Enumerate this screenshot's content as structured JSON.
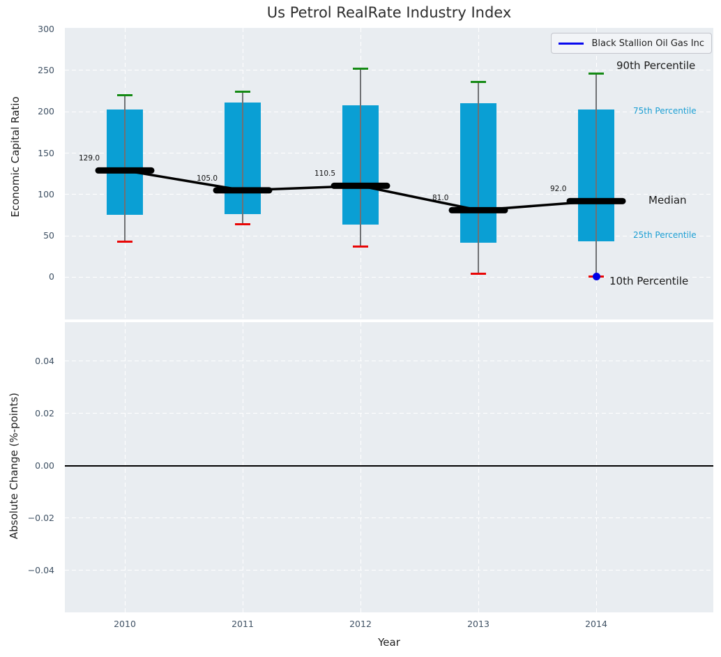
{
  "colors": {
    "panel_bg": "#e9edf1",
    "grid": "#ffffff",
    "box_fill": "#0a9fd4",
    "cap_top": "#148a14",
    "cap_bottom": "#e90505",
    "median_line": "#000000",
    "whisker": "#6f7174",
    "company_point": "#0000e6",
    "legend_line": "#0808ee",
    "tick_label": "#3e5063",
    "annotation_cyan": "#1b9ed3",
    "annotation_black": "#1a1a1a",
    "zero_line": "#000000"
  },
  "chart_data": [
    {
      "type": "boxplot",
      "title": "Us Petrol RealRate Industry Index",
      "xlabel": "Year",
      "ylabel": "Economic Capital Ratio",
      "categories": [
        "2010",
        "2011",
        "2012",
        "2013",
        "2014"
      ],
      "ylim": [
        -51,
        301.3
      ],
      "grid": true,
      "legend": {
        "label": "Black Stallion Oil Gas Inc",
        "position": "upper right"
      },
      "yticks": [
        {
          "value": 0,
          "label": "0"
        },
        {
          "value": 50,
          "label": "50"
        },
        {
          "value": 100,
          "label": "100"
        },
        {
          "value": 150,
          "label": "150"
        },
        {
          "value": 200,
          "label": "200"
        },
        {
          "value": 250,
          "label": "250"
        },
        {
          "value": 300,
          "label": "300"
        }
      ],
      "series": {
        "p90": [
          220,
          224,
          252,
          236,
          246
        ],
        "p75": [
          203,
          211,
          208,
          210,
          203
        ],
        "median": [
          129.0,
          105.0,
          110.5,
          81.0,
          92.0
        ],
        "p25": [
          75,
          76,
          64,
          42,
          43
        ],
        "p10": [
          43,
          64,
          37,
          4,
          1
        ]
      },
      "median_labels": [
        "129.0",
        "105.0",
        "110.5",
        "81.0",
        "92.0"
      ],
      "company_point": {
        "category": "2014",
        "value": 1
      },
      "annotations": [
        {
          "text": "90th Percentile",
          "color_key": "annotation_black",
          "font_px": 15,
          "ref": "p90"
        },
        {
          "text": "75th Percentile",
          "color_key": "annotation_cyan",
          "font_px": 12,
          "ref": "p75"
        },
        {
          "text": "Median",
          "color_key": "annotation_black",
          "font_px": 15,
          "ref": "median"
        },
        {
          "text": "25th Percentile",
          "color_key": "annotation_cyan",
          "font_px": 12,
          "ref": "p25"
        },
        {
          "text": "10th Percentile",
          "color_key": "annotation_black",
          "font_px": 15,
          "ref": "p10"
        }
      ]
    },
    {
      "type": "line",
      "ylabel": "Absolute Change (%-points)",
      "ylim": [
        -0.056,
        0.0549
      ],
      "zero_line": 0,
      "series": [],
      "yticks": [
        {
          "value": 0.04,
          "label": "0.04"
        },
        {
          "value": 0.02,
          "label": "0.02"
        },
        {
          "value": 0,
          "label": "0.00"
        },
        {
          "value": -0.02,
          "label": "−0.02"
        },
        {
          "value": -0.04,
          "label": "−0.04"
        }
      ]
    }
  ]
}
